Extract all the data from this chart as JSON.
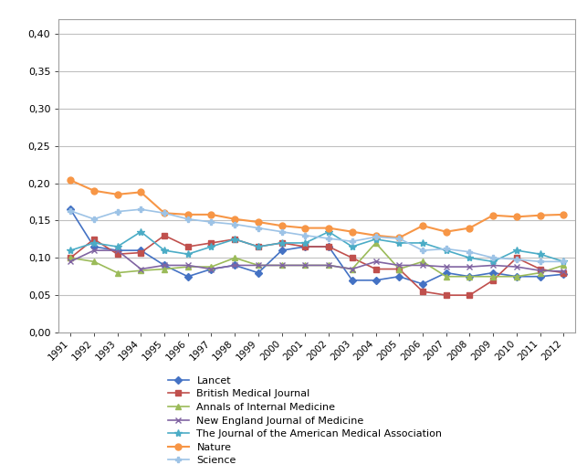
{
  "years": [
    1991,
    1992,
    1993,
    1994,
    1995,
    1996,
    1997,
    1998,
    1999,
    2000,
    2001,
    2002,
    2003,
    2004,
    2005,
    2006,
    2007,
    2008,
    2009,
    2010,
    2011,
    2012
  ],
  "series": {
    "Lancet": {
      "values": [
        0.165,
        0.115,
        0.11,
        0.11,
        0.09,
        0.075,
        0.085,
        0.09,
        0.08,
        0.11,
        0.115,
        0.115,
        0.07,
        0.07,
        0.075,
        0.065,
        0.08,
        0.075,
        0.08,
        0.075,
        0.075,
        0.078
      ],
      "color": "#4472C4",
      "marker": "D",
      "markersize": 4.5,
      "linewidth": 1.2
    },
    "British Medical Journal": {
      "values": [
        0.1,
        0.125,
        0.105,
        0.107,
        0.13,
        0.115,
        0.12,
        0.125,
        0.115,
        0.12,
        0.115,
        0.115,
        0.1,
        0.085,
        0.085,
        0.055,
        0.05,
        0.05,
        0.07,
        0.1,
        0.085,
        0.08
      ],
      "color": "#C0504D",
      "marker": "s",
      "markersize": 4.5,
      "linewidth": 1.2
    },
    "Annals of Internal Medicine": {
      "values": [
        0.1,
        0.095,
        0.08,
        0.083,
        0.085,
        0.088,
        0.088,
        0.1,
        0.09,
        0.09,
        0.09,
        0.09,
        0.085,
        0.12,
        0.085,
        0.095,
        0.075,
        0.075,
        0.075,
        0.075,
        0.08,
        0.09
      ],
      "color": "#9BBB59",
      "marker": "^",
      "markersize": 5,
      "linewidth": 1.2
    },
    "New England Journal of Medicine": {
      "values": [
        0.095,
        0.11,
        0.11,
        0.085,
        0.09,
        0.09,
        0.085,
        0.09,
        0.09,
        0.09,
        0.09,
        0.09,
        0.085,
        0.095,
        0.09,
        0.09,
        0.088,
        0.088,
        0.09,
        0.088,
        0.083,
        0.082
      ],
      "color": "#8064A2",
      "marker": "x",
      "markersize": 5,
      "linewidth": 1.2
    },
    "The Journal of the American Medical Association": {
      "values": [
        0.11,
        0.12,
        0.115,
        0.135,
        0.11,
        0.105,
        0.115,
        0.125,
        0.115,
        0.12,
        0.12,
        0.135,
        0.115,
        0.125,
        0.12,
        0.12,
        0.11,
        0.1,
        0.095,
        0.11,
        0.105,
        0.095
      ],
      "color": "#4BACC6",
      "marker": "*",
      "markersize": 6,
      "linewidth": 1.2
    },
    "Nature": {
      "values": [
        0.204,
        0.19,
        0.185,
        0.188,
        0.16,
        0.158,
        0.158,
        0.152,
        0.148,
        0.143,
        0.14,
        0.14,
        0.135,
        0.13,
        0.127,
        0.143,
        0.135,
        0.14,
        0.157,
        0.155,
        0.157,
        0.158
      ],
      "color": "#F79646",
      "marker": "o",
      "markersize": 5,
      "linewidth": 1.5
    },
    "Science": {
      "values": [
        0.163,
        0.152,
        0.162,
        0.165,
        0.16,
        0.152,
        0.148,
        0.145,
        0.14,
        0.135,
        0.13,
        0.126,
        0.122,
        0.128,
        0.126,
        0.11,
        0.112,
        0.108,
        0.1,
        0.098,
        0.095,
        0.095
      ],
      "color": "#9DC3E6",
      "marker": "P",
      "markersize": 4.5,
      "linewidth": 1.2
    }
  },
  "ylim": [
    0.0,
    0.42
  ],
  "yticks": [
    0.0,
    0.05,
    0.1,
    0.15,
    0.2,
    0.25,
    0.3,
    0.35,
    0.4
  ],
  "ytick_labels": [
    "0,00",
    "0,05",
    "0,10",
    "0,15",
    "0,20",
    "0,25",
    "0,30",
    "0,35",
    "0,40"
  ],
  "background_color": "#FFFFFF",
  "grid_color": "#C0C0C0",
  "legend_order": [
    "Lancet",
    "British Medical Journal",
    "Annals of Internal Medicine",
    "New England Journal of Medicine",
    "The Journal of the American Medical Association",
    "Nature",
    "Science"
  ]
}
